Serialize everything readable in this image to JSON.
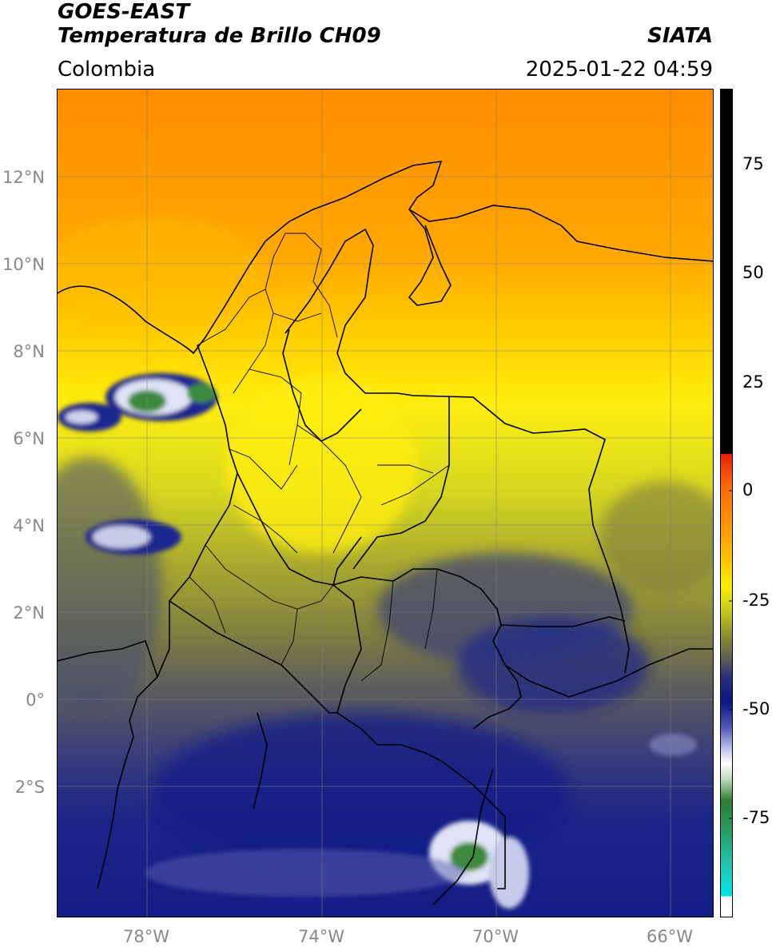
{
  "header": {
    "satellite": "GOES-EAST",
    "product": "Temperatura de Brillo CH09",
    "source": "SIATA",
    "region": "Colombia",
    "datetime": "2025-01-22 04:59"
  },
  "axes": {
    "lat_ticks": [
      "12°N",
      "10°N",
      "8°N",
      "6°N",
      "4°N",
      "2°N",
      "0°",
      "2°S"
    ],
    "lon_ticks": [
      "78°W",
      "74°W",
      "70°W",
      "66°W"
    ]
  },
  "colorbar": {
    "ticks": [
      "75",
      "50",
      "25",
      "0",
      "-25",
      "-50",
      "-75"
    ],
    "colors": {
      "warm_black": "#000000",
      "red": "#e8200a",
      "orange": "#ff8a00",
      "yellow": "#ffee00",
      "olive": "#8e8e2a",
      "gray": "#5a5a5a",
      "navy": "#0a1585",
      "white": "#ffffff",
      "green": "#2e7d2e",
      "teal": "#1fc8b8",
      "cyan": "#00e5e5"
    }
  }
}
